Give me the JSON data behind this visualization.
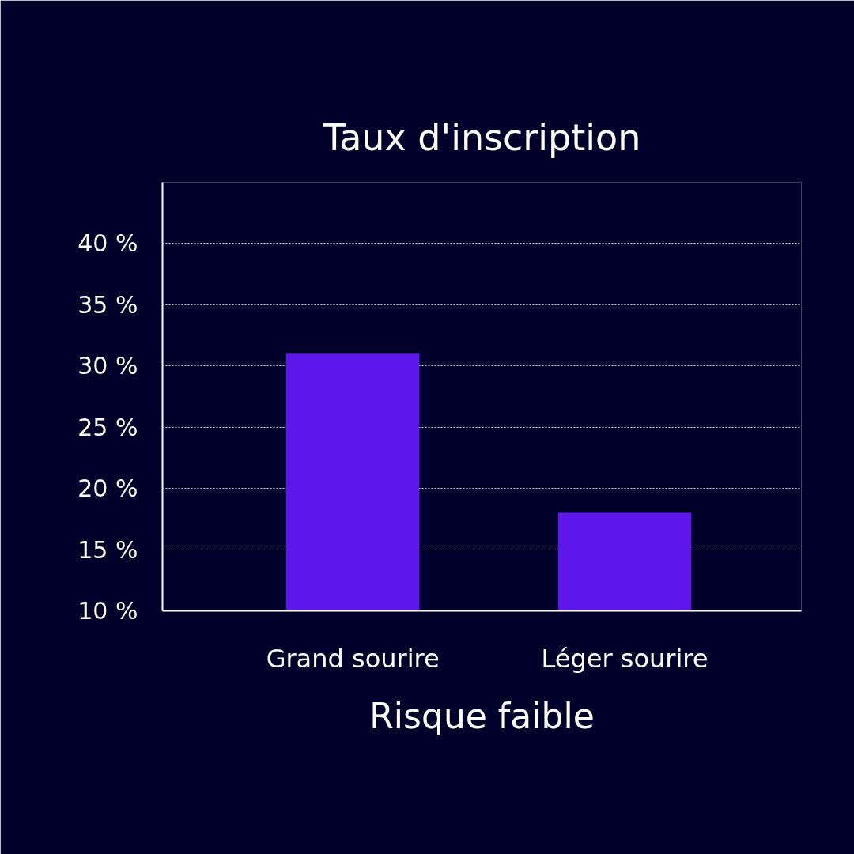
{
  "chart_data": {
    "type": "bar",
    "title": "Taux d'inscription",
    "xlabel": "Risque faible",
    "categories": [
      "Grand sourire",
      "Léger sourire"
    ],
    "values": [
      31,
      18
    ],
    "color": "#5e17eb",
    "ylim": [
      10,
      45
    ],
    "yticks": [
      {
        "value": 10,
        "label": "10 %"
      },
      {
        "value": 15,
        "label": "15 %"
      },
      {
        "value": 20,
        "label": "20 %"
      },
      {
        "value": 25,
        "label": "25 %"
      },
      {
        "value": 30,
        "label": "30 %"
      },
      {
        "value": 35,
        "label": "35 %"
      },
      {
        "value": 40,
        "label": "40 %"
      }
    ],
    "grid": "y"
  }
}
